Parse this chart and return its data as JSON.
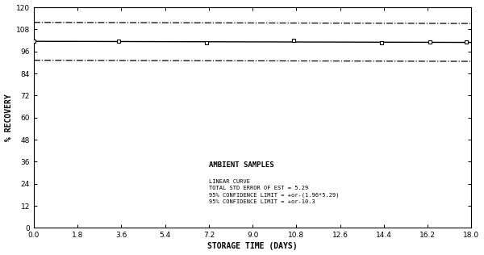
{
  "title": "AMBIENT SAMPLES",
  "xlabel": "STORAGE TIME (DAYS)",
  "ylabel": "% RECOVERY",
  "xlim": [
    0.0,
    18.0
  ],
  "ylim": [
    0,
    120
  ],
  "yticks": [
    0,
    12,
    24,
    36,
    48,
    60,
    72,
    84,
    96,
    108,
    120
  ],
  "xticks": [
    0.0,
    1.8,
    3.6,
    5.4,
    7.2,
    9.0,
    10.8,
    12.6,
    14.4,
    16.2,
    18.0
  ],
  "data_x": [
    0.0,
    3.5,
    7.1,
    10.7,
    14.3,
    16.3,
    17.8
  ],
  "data_y": [
    101.5,
    101.5,
    100.5,
    102.0,
    100.5,
    101.0,
    101.2
  ],
  "linear_y0": 101.5,
  "linear_y1": 100.9,
  "upper_conf_y0": 111.8,
  "upper_conf_y1": 111.2,
  "lower_conf_y0": 91.2,
  "lower_conf_y1": 90.6,
  "annot_title": "AMBIENT SAMPLES",
  "annot_lines": [
    "LINEAR CURVE",
    "TOTAL STD ERROR OF EST = 5.29",
    "95% CONFIDENCE LIMIT = +or-(1.96*5.29)",
    "95% CONFIDENCE LIMIT = +or-10.3"
  ],
  "background_color": "#ffffff",
  "line_color": "#000000"
}
